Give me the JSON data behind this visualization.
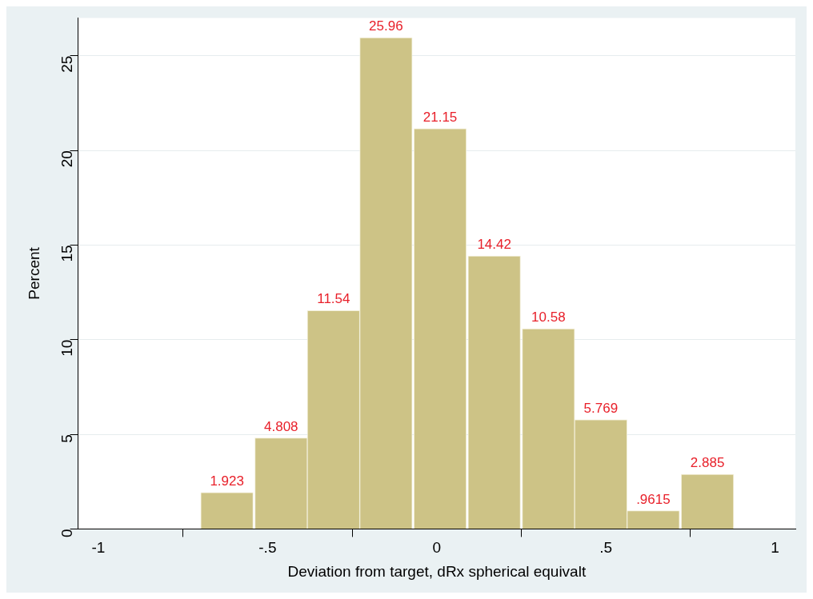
{
  "chart_data": {
    "type": "histogram",
    "xlabel": "Deviation from target, dRx spherical equivalt",
    "ylabel": "Percent",
    "bins": [
      -0.7,
      -0.54,
      -0.38,
      -0.23,
      -0.07,
      0.09,
      0.25,
      0.41,
      0.56,
      0.72,
      0.88
    ],
    "values": [
      1.923,
      4.808,
      11.54,
      25.96,
      21.15,
      14.42,
      10.58,
      5.769,
      0.9615,
      2.885
    ],
    "value_labels": [
      "1.923",
      "4.808",
      "11.54",
      "25.96",
      "21.15",
      "14.42",
      "10.58",
      "5.769",
      ".9615",
      "2.885"
    ],
    "color": "#cdc386",
    "xlim": [
      -1.06,
      1.06
    ],
    "xticks": [
      {
        "value": -1,
        "label": "-1"
      },
      {
        "value": -0.5,
        "label": "-.5"
      },
      0,
      {
        "value": 0.5,
        "label": ".5"
      },
      1
    ],
    "ylim": [
      0,
      27
    ],
    "yticks": [
      0,
      5,
      10,
      15,
      20,
      25
    ],
    "grid": "y",
    "legend": false
  }
}
